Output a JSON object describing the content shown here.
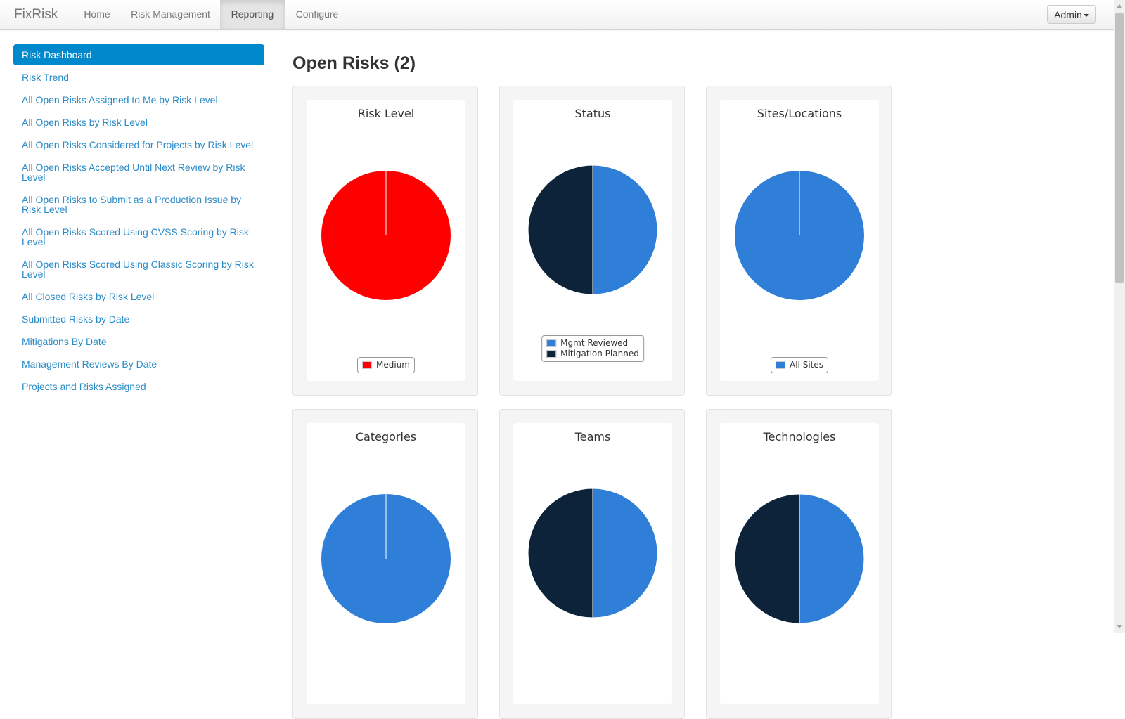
{
  "navbar": {
    "brand": "FixRisk",
    "items": [
      {
        "label": "Home",
        "active": false
      },
      {
        "label": "Risk Management",
        "active": false
      },
      {
        "label": "Reporting",
        "active": true
      },
      {
        "label": "Configure",
        "active": false
      }
    ],
    "user_menu": "Admin"
  },
  "sidebar": {
    "items": [
      {
        "label": "Risk Dashboard",
        "active": true
      },
      {
        "label": "Risk Trend"
      },
      {
        "label": "All Open Risks Assigned to Me by Risk Level"
      },
      {
        "label": "All Open Risks by Risk Level"
      },
      {
        "label": "All Open Risks Considered for Projects by Risk Level"
      },
      {
        "label": "All Open Risks Accepted Until Next Review by Risk Level"
      },
      {
        "label": "All Open Risks to Submit as a Production Issue by Risk Level"
      },
      {
        "label": "All Open Risks Scored Using CVSS Scoring by Risk Level"
      },
      {
        "label": "All Open Risks Scored Using Classic Scoring by Risk Level"
      },
      {
        "label": "All Closed Risks by Risk Level"
      },
      {
        "label": "Submitted Risks by Date"
      },
      {
        "label": "Mitigations By Date"
      },
      {
        "label": "Management Reviews By Date"
      },
      {
        "label": "Projects and Risks Assigned"
      }
    ]
  },
  "main": {
    "title": "Open Risks (2)"
  },
  "colors": {
    "red": "#ff0000",
    "blue": "#2f7ed8",
    "navy": "#0d233a",
    "sidebar_active": "#0088cc",
    "link": "#2a8bc8"
  },
  "chart_data": [
    {
      "type": "pie",
      "title": "Risk Level",
      "series": [
        {
          "values": [
            {
              "label": "Medium",
              "value": 2,
              "color": "#ff0000"
            }
          ]
        }
      ],
      "legend": [
        "Medium"
      ],
      "legend_visible": true
    },
    {
      "type": "pie",
      "title": "Status",
      "series": [
        {
          "values": [
            {
              "label": "Mgmt Reviewed",
              "value": 1,
              "color": "#2f7ed8"
            },
            {
              "label": "Mitigation Planned",
              "value": 1,
              "color": "#0d233a"
            }
          ]
        }
      ],
      "legend": [
        "Mgmt Reviewed",
        "Mitigation Planned"
      ],
      "legend_visible": true
    },
    {
      "type": "pie",
      "title": "Sites/Locations",
      "series": [
        {
          "values": [
            {
              "label": "All Sites",
              "value": 2,
              "color": "#2f7ed8"
            }
          ]
        }
      ],
      "legend": [
        "All Sites"
      ],
      "legend_visible": true
    },
    {
      "type": "pie",
      "title": "Categories",
      "series": [
        {
          "values": [
            {
              "label": "",
              "value": 2,
              "color": "#2f7ed8"
            }
          ]
        }
      ],
      "legend_visible": false
    },
    {
      "type": "pie",
      "title": "Teams",
      "series": [
        {
          "values": [
            {
              "label": "",
              "value": 1,
              "color": "#2f7ed8"
            },
            {
              "label": "",
              "value": 1,
              "color": "#0d233a"
            }
          ]
        }
      ],
      "legend_visible": false
    },
    {
      "type": "pie",
      "title": "Technologies",
      "series": [
        {
          "values": [
            {
              "label": "",
              "value": 1,
              "color": "#2f7ed8"
            },
            {
              "label": "",
              "value": 1,
              "color": "#0d233a"
            }
          ]
        }
      ],
      "legend_visible": false
    }
  ]
}
